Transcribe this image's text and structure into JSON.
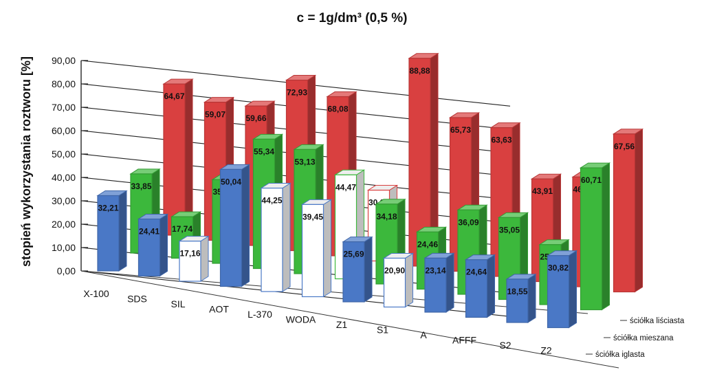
{
  "chart_data": {
    "type": "bar",
    "title": "c = 1g/dm³ (0,5 %)",
    "ylabel": "stopień wykorzystania  roztworu [%]",
    "xlabel": "",
    "ylim": [
      0,
      90
    ],
    "yticks": [
      "0,00",
      "10,00",
      "20,00",
      "30,00",
      "40,00",
      "50,00",
      "60,00",
      "70,00",
      "80,00",
      "90,00"
    ],
    "grid": true,
    "categories": [
      "X-100",
      "SDS",
      "SIL",
      "AOT",
      "L-370",
      "WODA",
      "Z1",
      "S1",
      "A",
      "AFFF",
      "S2",
      "Z2"
    ],
    "series": [
      {
        "name": "ściółka liściasta",
        "color": "#d94040",
        "values": [
          64.67,
          59.07,
          59.66,
          72.93,
          68.08,
          30.28,
          88.88,
          65.73,
          63.63,
          43.91,
          46.94,
          67.56
        ],
        "labels": [
          "64,67",
          "59,07",
          "59,66",
          "72,93",
          "68,08",
          "30,28",
          "88,88",
          "65,73",
          "63,63",
          "43,91",
          "46,94",
          "67,56"
        ]
      },
      {
        "name": "ściółka mieszana",
        "color": "#3cb83c",
        "values": [
          33.85,
          17.74,
          35.83,
          55.34,
          53.13,
          44.47,
          34.18,
          24.46,
          36.09,
          35.05,
          25.67,
          60.71
        ],
        "labels": [
          "33,85",
          "17,74",
          "35,83",
          "55,34",
          "53,13",
          "44,47",
          "34,18",
          "24,46",
          "36,09",
          "35,05",
          "25,67",
          "60,71"
        ]
      },
      {
        "name": "ściółka iglasta",
        "color": "#4a78c6",
        "values": [
          32.21,
          24.41,
          17.16,
          50.04,
          44.25,
          39.45,
          25.69,
          20.9,
          23.14,
          24.64,
          18.55,
          30.82
        ],
        "labels": [
          "32,21",
          "24,41",
          "17,16",
          "50,04",
          "44,25",
          "39,45",
          "25,69",
          "20,90",
          "23,14",
          "24,64",
          "18,55",
          "30,82"
        ]
      }
    ]
  }
}
